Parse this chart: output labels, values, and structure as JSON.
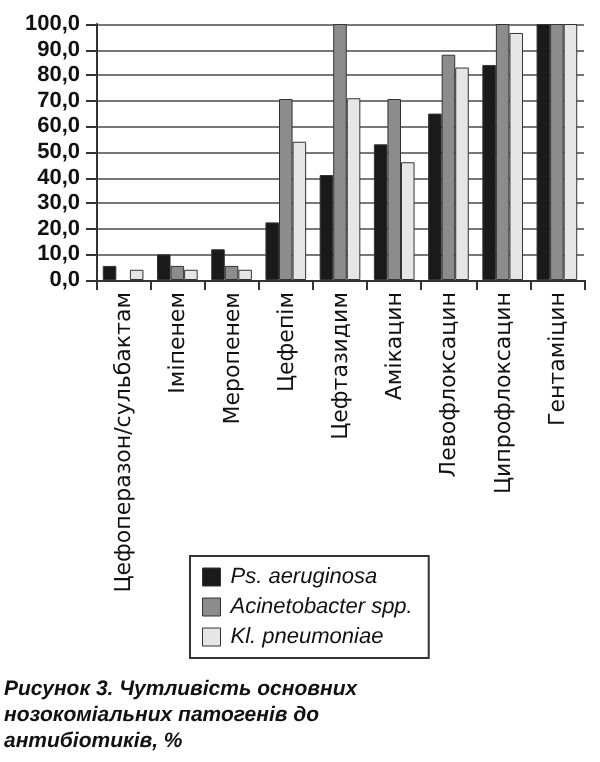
{
  "chart_data": {
    "type": "bar",
    "title": "Рисунок 3. Чутливість основних нозокоміальних патогенів до антибіотиків, %",
    "categories": [
      "Цефоперазон/сульбактам",
      "Іміпенем",
      "Меропенем",
      "Цефепім",
      "Цефтазидим",
      "Амікацин",
      "Левофлоксацин",
      "Ципрофлоксацин",
      "Гентаміцин"
    ],
    "series": [
      {
        "name": "Ps. aeruginosa",
        "color": "#1a1a1a",
        "values": [
          5.5,
          10,
          12,
          22.5,
          41,
          53,
          65,
          84,
          100
        ]
      },
      {
        "name": "Acinetobacter spp.",
        "color": "#8c8c8c",
        "values": [
          null,
          5.5,
          5.5,
          70.7,
          100,
          70.7,
          88,
          100,
          100
        ]
      },
      {
        "name": "Kl. pneumoniae",
        "color": "#e6e6e6",
        "values": [
          4,
          4,
          4,
          54,
          71,
          46,
          83,
          96.5,
          100
        ]
      }
    ],
    "ylim": [
      0,
      100
    ],
    "yticks": [
      {
        "value": 0,
        "label": "0,0"
      },
      {
        "value": 10,
        "label": "10,0"
      },
      {
        "value": 20,
        "label": "20,0"
      },
      {
        "value": 30,
        "label": "30,0"
      },
      {
        "value": 40,
        "label": "40,0"
      },
      {
        "value": 50,
        "label": "50,0"
      },
      {
        "value": 60,
        "label": "60,0"
      },
      {
        "value": 70,
        "label": "70,0"
      },
      {
        "value": 80,
        "label": "80,0"
      },
      {
        "value": 90,
        "label": "90,0"
      },
      {
        "value": 100,
        "label": "100,0"
      }
    ],
    "grid": "y",
    "legend": "bottom"
  }
}
